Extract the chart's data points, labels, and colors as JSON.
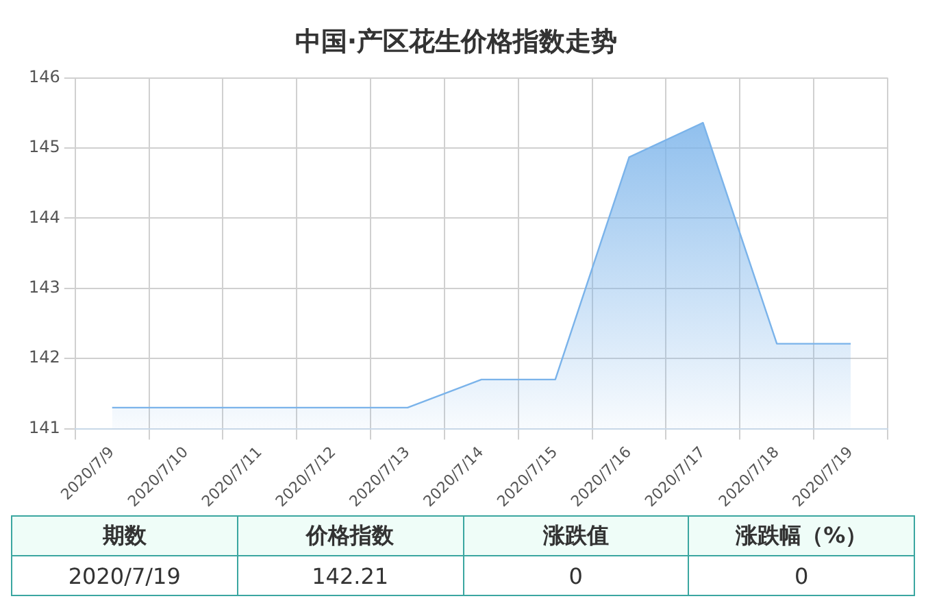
{
  "chart_data": [
    {
      "type": "area",
      "title": "中国·产区花生价格指数走势",
      "categories": [
        "2020/7/9",
        "2020/7/10",
        "2020/7/11",
        "2020/7/12",
        "2020/7/13",
        "2020/7/14",
        "2020/7/15",
        "2020/7/16",
        "2020/7/17",
        "2020/7/18",
        "2020/7/19"
      ],
      "values": [
        141.3,
        141.3,
        141.3,
        141.3,
        141.3,
        141.7,
        141.7,
        144.87,
        145.36,
        142.21,
        142.21
      ],
      "color": "#7ab3ea",
      "ylim": [
        141,
        146
      ],
      "yticks": [
        141,
        142,
        143,
        144,
        145,
        146
      ],
      "grid": true
    },
    {
      "type": "other",
      "annotations": [
        "期数",
        "价格指数",
        "涨跌值",
        "涨跌幅（%）",
        "2020/7/19",
        "142.21",
        "0",
        "0"
      ]
    }
  ]
}
